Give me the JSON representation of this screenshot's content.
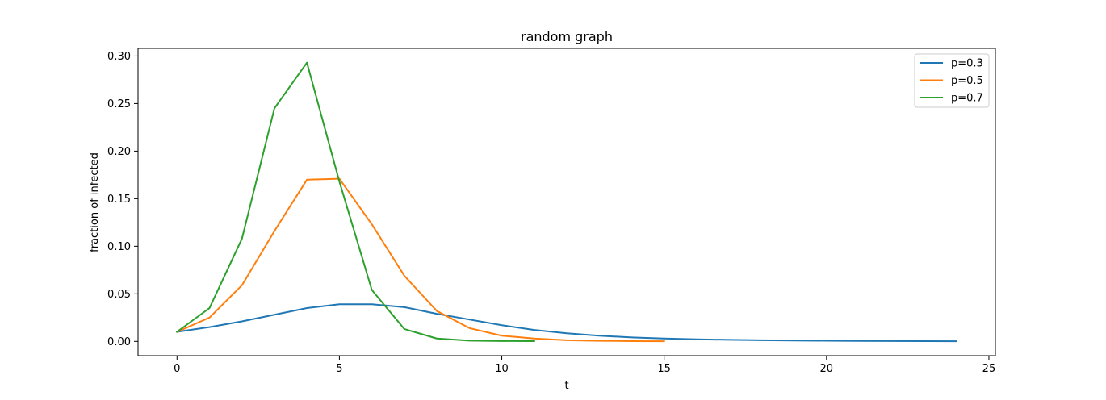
{
  "chart_data": {
    "type": "line",
    "title": "random graph",
    "xlabel": "t",
    "ylabel": "fraction of infected",
    "xlim": [
      -1.2,
      25.2
    ],
    "ylim": [
      -0.015,
      0.308
    ],
    "xticks": [
      0,
      5,
      10,
      15,
      20,
      25
    ],
    "yticks": [
      0.0,
      0.05,
      0.1,
      0.15,
      0.2,
      0.25,
      0.3
    ],
    "ytick_labels": [
      "0.00",
      "0.05",
      "0.10",
      "0.15",
      "0.20",
      "0.25",
      "0.30"
    ],
    "grid": false,
    "legend_position": "top-right",
    "series": [
      {
        "name": "p=0.3",
        "color": "#1f77b4",
        "x": [
          0,
          1,
          2,
          3,
          4,
          5,
          6,
          7,
          8,
          9,
          10,
          11,
          12,
          13,
          14,
          15,
          16,
          17,
          18,
          19,
          20,
          21,
          22,
          23,
          24
        ],
        "y": [
          0.01,
          0.015,
          0.021,
          0.028,
          0.035,
          0.039,
          0.039,
          0.036,
          0.029,
          0.023,
          0.017,
          0.012,
          0.0085,
          0.006,
          0.0042,
          0.003,
          0.0022,
          0.0016,
          0.0012,
          0.0009,
          0.0007,
          0.0005,
          0.0004,
          0.0003,
          0.0002
        ]
      },
      {
        "name": "p=0.5",
        "color": "#ff7f0e",
        "x": [
          0,
          1,
          2,
          3,
          4,
          5,
          6,
          7,
          8,
          9,
          10,
          11,
          12,
          13,
          14,
          15
        ],
        "y": [
          0.01,
          0.025,
          0.059,
          0.116,
          0.17,
          0.171,
          0.123,
          0.069,
          0.032,
          0.014,
          0.006,
          0.003,
          0.0012,
          0.0006,
          0.0003,
          0.0002
        ]
      },
      {
        "name": "p=0.7",
        "color": "#2ca02c",
        "x": [
          0,
          1,
          2,
          3,
          4,
          5,
          6,
          7,
          8,
          9,
          10,
          11
        ],
        "y": [
          0.01,
          0.035,
          0.108,
          0.245,
          0.293,
          0.168,
          0.054,
          0.013,
          0.003,
          0.0008,
          0.0004,
          0.0003
        ]
      }
    ]
  }
}
